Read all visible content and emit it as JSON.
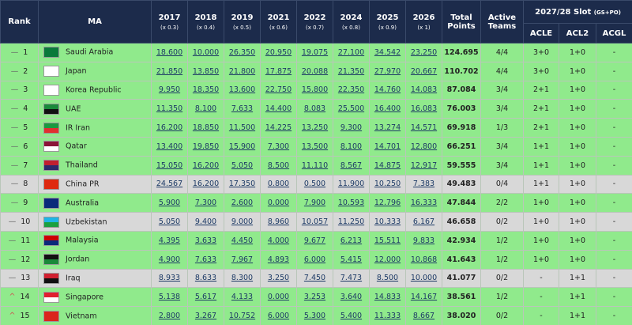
{
  "table": {
    "header": {
      "rank": "Rank",
      "ma": "MA",
      "years": [
        {
          "year": "2017",
          "factor": "(x 0.3)"
        },
        {
          "year": "2018",
          "factor": "(x 0.4)"
        },
        {
          "year": "2019",
          "factor": "(x 0.5)"
        },
        {
          "year": "2021",
          "factor": "(x 0.6)"
        },
        {
          "year": "2022",
          "factor": "(x 0.7)"
        },
        {
          "year": "2024",
          "factor": "(x 0.8)"
        },
        {
          "year": "2025",
          "factor": "(x 0.9)"
        },
        {
          "year": "2026",
          "factor": "(x 1)"
        }
      ],
      "total": "Total Points",
      "active": "Active Teams",
      "slot": "2027/28 Slot",
      "slot_note": "(GS+PO)",
      "slots": [
        "ACLE",
        "ACL2",
        "ACGL"
      ]
    },
    "rows": [
      {
        "rank": "1",
        "trend": "—",
        "ma": "Saudi Arabia",
        "points": [
          "18.600",
          "10.000",
          "26.350",
          "20.950",
          "19.075",
          "27.100",
          "34.542",
          "23.250"
        ],
        "total": "124.695",
        "active": "4/4",
        "slots": [
          "3+0",
          "1+0",
          "-"
        ]
      },
      {
        "rank": "2",
        "trend": "—",
        "ma": "Japan",
        "points": [
          "21.850",
          "13.850",
          "21.800",
          "17.875",
          "20.088",
          "21.350",
          "27.970",
          "20.667"
        ],
        "total": "110.702",
        "active": "4/4",
        "slots": [
          "3+0",
          "1+0",
          "-"
        ]
      },
      {
        "rank": "3",
        "trend": "—",
        "ma": "Korea Republic",
        "points": [
          "9.950",
          "18.350",
          "13.600",
          "22.750",
          "15.800",
          "22.350",
          "14.760",
          "14.083"
        ],
        "total": "87.084",
        "active": "3/4",
        "slots": [
          "2+1",
          "1+0",
          "-"
        ]
      },
      {
        "rank": "4",
        "trend": "—",
        "ma": "UAE",
        "points": [
          "11.350",
          "8.100",
          "7.633",
          "14.400",
          "8.083",
          "25.500",
          "16.400",
          "16.083"
        ],
        "total": "76.003",
        "active": "3/4",
        "slots": [
          "2+1",
          "1+0",
          "-"
        ]
      },
      {
        "rank": "5",
        "trend": "—",
        "ma": "IR Iran",
        "points": [
          "16.200",
          "18.850",
          "11.500",
          "14.225",
          "13.250",
          "9.300",
          "13.274",
          "14.571"
        ],
        "total": "69.918",
        "active": "1/3",
        "slots": [
          "2+1",
          "1+0",
          "-"
        ]
      },
      {
        "rank": "6",
        "trend": "—",
        "ma": "Qatar",
        "points": [
          "13.400",
          "19.850",
          "15.900",
          "7.300",
          "13.500",
          "8.100",
          "14.701",
          "12.800"
        ],
        "total": "66.251",
        "active": "3/4",
        "slots": [
          "1+1",
          "1+0",
          "-"
        ]
      },
      {
        "rank": "7",
        "trend": "—",
        "ma": "Thailand",
        "points": [
          "15.050",
          "16.200",
          "5.050",
          "8.500",
          "11.110",
          "8.567",
          "14.875",
          "12.917"
        ],
        "total": "59.555",
        "active": "3/4",
        "slots": [
          "1+1",
          "1+0",
          "-"
        ]
      },
      {
        "rank": "8",
        "trend": "—",
        "ma": "China PR",
        "points": [
          "24.567",
          "16.200",
          "17.350",
          "0.800",
          "0.500",
          "11.900",
          "10.250",
          "7.383"
        ],
        "total": "49.483",
        "active": "0/4",
        "slots": [
          "1+1",
          "1+0",
          "-"
        ]
      },
      {
        "rank": "9",
        "trend": "—",
        "ma": "Australia",
        "points": [
          "5.900",
          "7.300",
          "2.600",
          "0.000",
          "7.900",
          "10.593",
          "12.796",
          "16.333"
        ],
        "total": "47.844",
        "active": "2/2",
        "slots": [
          "1+0",
          "1+0",
          "-"
        ]
      },
      {
        "rank": "10",
        "trend": "—",
        "ma": "Uzbekistan",
        "points": [
          "5.050",
          "9.400",
          "9.000",
          "8.960",
          "10.057",
          "11.250",
          "10.333",
          "6.167"
        ],
        "total": "46.658",
        "active": "0/2",
        "slots": [
          "1+0",
          "1+0",
          "-"
        ]
      },
      {
        "rank": "11",
        "trend": "—",
        "ma": "Malaysia",
        "points": [
          "4.395",
          "3.633",
          "4.450",
          "4.000",
          "9.677",
          "6.213",
          "15.511",
          "9.833"
        ],
        "total": "42.934",
        "active": "1/2",
        "slots": [
          "1+0",
          "1+0",
          "-"
        ]
      },
      {
        "rank": "12",
        "trend": "—",
        "ma": "Jordan",
        "points": [
          "4.900",
          "7.633",
          "7.967",
          "4.893",
          "6.000",
          "5.415",
          "12.000",
          "10.868"
        ],
        "total": "41.643",
        "active": "1/2",
        "slots": [
          "1+0",
          "1+0",
          "-"
        ]
      },
      {
        "rank": "13",
        "trend": "—",
        "ma": "Iraq",
        "points": [
          "8.933",
          "8.633",
          "8.300",
          "3.250",
          "7.450",
          "7.473",
          "8.500",
          "10.000"
        ],
        "total": "41.077",
        "active": "0/2",
        "slots": [
          "-",
          "1+1",
          "-"
        ]
      },
      {
        "rank": "14",
        "trend": "^",
        "ma": "Singapore",
        "points": [
          "5.138",
          "5.617",
          "4.133",
          "0.000",
          "3.253",
          "3.640",
          "14.833",
          "14.167"
        ],
        "total": "38.561",
        "active": "1/2",
        "slots": [
          "-",
          "1+1",
          "-"
        ]
      },
      {
        "rank": "15",
        "trend": "^",
        "ma": "Vietnam",
        "points": [
          "2.800",
          "3.267",
          "10.752",
          "6.000",
          "5.300",
          "5.400",
          "11.333",
          "8.667"
        ],
        "total": "38.020",
        "active": "0/2",
        "slots": [
          "-",
          "1+1",
          "-"
        ]
      }
    ]
  }
}
